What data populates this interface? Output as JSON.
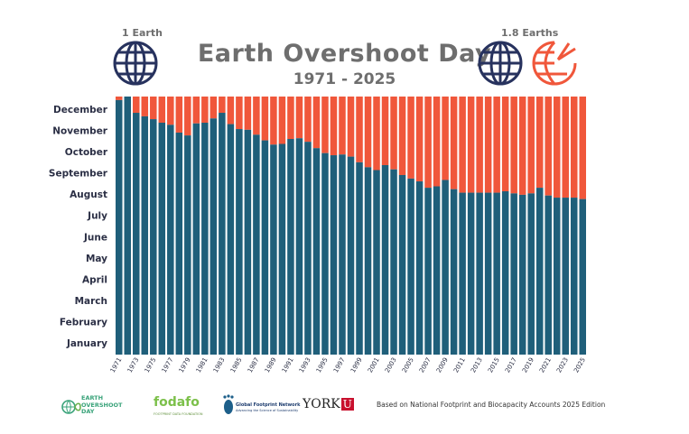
{
  "header": {
    "title": "Earth Overshoot Day",
    "subtitle": "1971 - 2025",
    "left_label": "1 Earth",
    "right_label": "1.8 Earths"
  },
  "footer": {
    "note": "Based on National Footprint and Biocapacity Accounts 2025 Edition",
    "logos": {
      "eo_line1": "EARTH",
      "eo_line2": "OVERSHOOT",
      "eo_line3": "DAY",
      "fodafo": "fodafo",
      "fodafo_sub": "FOOTPRINT DATA FOUNDATION",
      "gfn_line1": "Global Footprint Network",
      "gfn_line2": "Advancing the Science of Sustainability",
      "york": "YORK",
      "york_u": "U"
    }
  },
  "colors": {
    "consumed": "#1f5f7a",
    "overshoot": "#f0573b",
    "globe_blue": "#27325e",
    "title_grey": "#6e6e6e"
  },
  "chart_data": {
    "type": "bar",
    "title": "Earth Overshoot Day 1971 - 2025",
    "xlabel": "",
    "ylabel": "",
    "y_unit": "day of year",
    "ylim": [
      0,
      365
    ],
    "y_tick_labels": [
      "January",
      "February",
      "March",
      "April",
      "May",
      "June",
      "July",
      "August",
      "September",
      "October",
      "November",
      "December"
    ],
    "x_tick_labels": [
      "1971",
      "1973",
      "1975",
      "1977",
      "1979",
      "1981",
      "1983",
      "1985",
      "1987",
      "1989",
      "1991",
      "1993",
      "1995",
      "1997",
      "1999",
      "2001",
      "2003",
      "2005",
      "2007",
      "2009",
      "2011",
      "2013",
      "2015",
      "2017",
      "2019",
      "2021",
      "2023",
      "2025"
    ],
    "years": [
      1971,
      1972,
      1973,
      1974,
      1975,
      1976,
      1977,
      1978,
      1979,
      1980,
      1981,
      1982,
      1983,
      1984,
      1985,
      1986,
      1987,
      1988,
      1989,
      1990,
      1991,
      1992,
      1993,
      1994,
      1995,
      1996,
      1997,
      1998,
      1999,
      2000,
      2001,
      2002,
      2003,
      2004,
      2005,
      2006,
      2007,
      2008,
      2009,
      2010,
      2011,
      2012,
      2013,
      2014,
      2015,
      2016,
      2017,
      2018,
      2019,
      2020,
      2021,
      2022,
      2023,
      2024,
      2025
    ],
    "series": [
      {
        "name": "Overshoot day (day of year)",
        "values": [
          360,
          365,
          342,
          337,
          333,
          328,
          325,
          314,
          310,
          327,
          328,
          334,
          342,
          326,
          319,
          318,
          311,
          303,
          297,
          298,
          305,
          306,
          301,
          292,
          285,
          282,
          283,
          280,
          272,
          265,
          261,
          268,
          262,
          254,
          249,
          245,
          236,
          238,
          247,
          234,
          229,
          229,
          229,
          229,
          229,
          231,
          228,
          226,
          228,
          236,
          225,
          222,
          222,
          222,
          220
        ]
      }
    ]
  }
}
